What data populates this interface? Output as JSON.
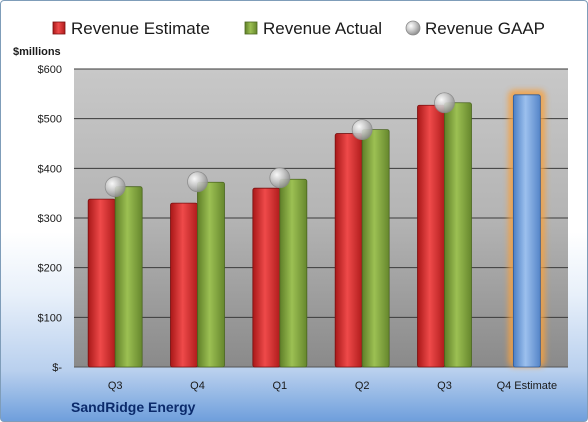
{
  "chart_data": {
    "type": "bar",
    "title": "",
    "unit_label": "$millions",
    "company": "SandRidge Energy",
    "categories": [
      "Q3",
      "Q4",
      "Q1",
      "Q2",
      "Q3",
      "Q4 Estimate"
    ],
    "ylim": [
      0,
      600
    ],
    "yticks": [
      0,
      100,
      200,
      300,
      400,
      500,
      600
    ],
    "ytick_labels": [
      "$-",
      "$100",
      "$200",
      "$300",
      "$400",
      "$500",
      "$600"
    ],
    "grid": true,
    "legend_position": "top",
    "series": [
      {
        "name": "Revenue Estimate",
        "kind": "bar",
        "color": "#d62a2a",
        "values": [
          338,
          330,
          360,
          470,
          527,
          null
        ]
      },
      {
        "name": "Revenue Actual",
        "kind": "bar",
        "color": "#7fa33a",
        "values": [
          363,
          372,
          378,
          478,
          532,
          null
        ]
      },
      {
        "name": "Revenue GAAP",
        "kind": "marker",
        "color": "#c0c0c0",
        "values": [
          363,
          373,
          381,
          478,
          532,
          null
        ]
      },
      {
        "name": "Q4 Estimate",
        "kind": "highlight-bar",
        "color": "#6f9fdc",
        "glow": "#f5a040",
        "values": [
          null,
          null,
          null,
          null,
          null,
          548
        ]
      }
    ]
  }
}
